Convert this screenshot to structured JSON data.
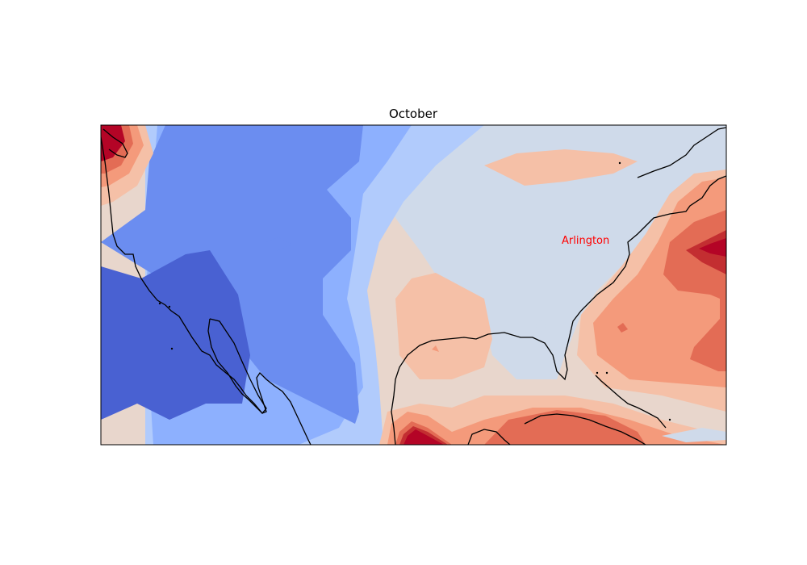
{
  "title": "October",
  "annotation": {
    "label": "Arlington",
    "color": "#ff0000"
  },
  "colormap": "coolwarm",
  "palette": {
    "b6": "#4961d2",
    "b5": "#6b8df0",
    "b4": "#8db0fe",
    "b3": "#b1cbfc",
    "n0": "#cfdaea",
    "r1": "#e8d6cc",
    "r2": "#f5c0a7",
    "r3": "#f49a7b",
    "r4": "#e36c55",
    "r5": "#c32e31",
    "r6": "#b40426",
    "coast": "#000000"
  }
}
